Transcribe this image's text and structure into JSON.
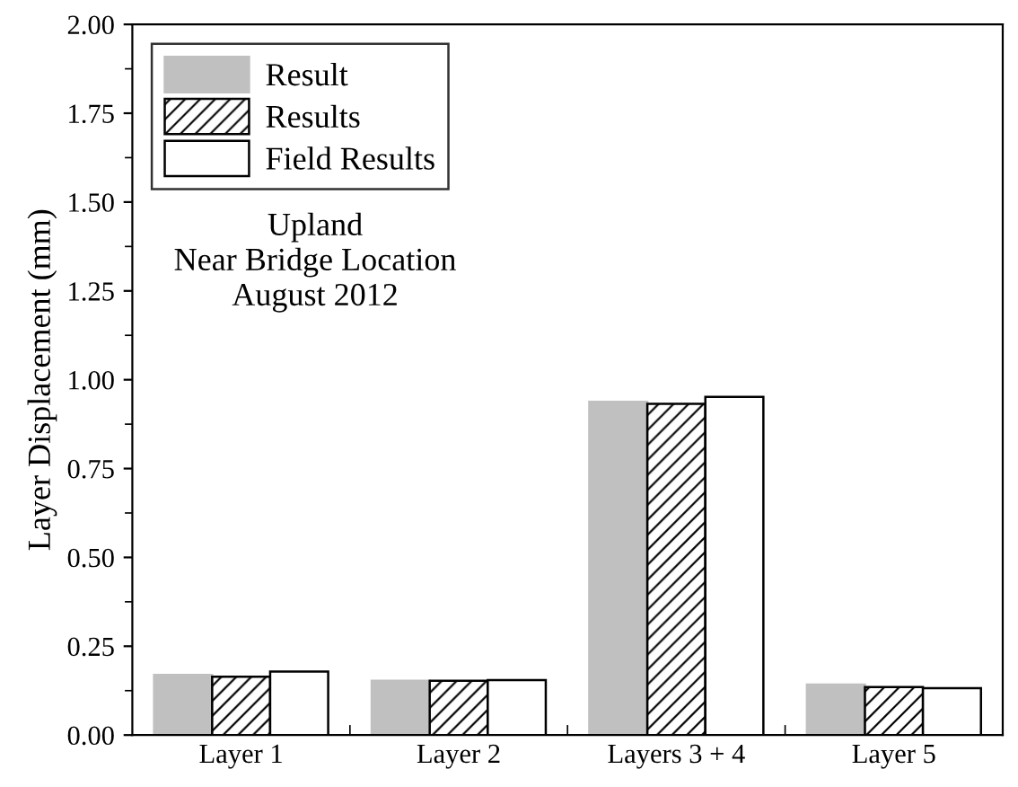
{
  "chart_data": {
    "type": "bar",
    "ylabel": "Layer Displacement (mm)",
    "categories": [
      "Layer 1",
      "Layer 2",
      "Layers 3 + 4",
      "Layer 5"
    ],
    "series": [
      {
        "name": "Result",
        "color": "#c0c0c0",
        "values": [
          0.169,
          0.153,
          0.938,
          0.142
        ]
      },
      {
        "name": "Results",
        "color": "#000000",
        "values": [
          0.164,
          0.153,
          0.932,
          0.135
        ]
      },
      {
        "name": "Field Results",
        "color": "#ffffff",
        "values": [
          0.179,
          0.155,
          0.952,
          0.132
        ]
      }
    ],
    "ylim": [
      0,
      2
    ],
    "yticks": [
      {
        "value": 0,
        "label": "0.00"
      },
      {
        "value": 0.25,
        "label": "0.25"
      },
      {
        "value": 0.5,
        "label": "0.50"
      },
      {
        "value": 0.75,
        "label": "0.75"
      },
      {
        "value": 1,
        "label": "1.00"
      },
      {
        "value": 1.25,
        "label": "1.25"
      },
      {
        "value": 1.5,
        "label": "1.50"
      },
      {
        "value": 1.75,
        "label": "1.75"
      },
      {
        "value": 2,
        "label": "2.00"
      }
    ],
    "annotations": [
      "Upland\nNear Bridge Location\nAugust 2012"
    ],
    "legend": "top left",
    "grid": false
  }
}
